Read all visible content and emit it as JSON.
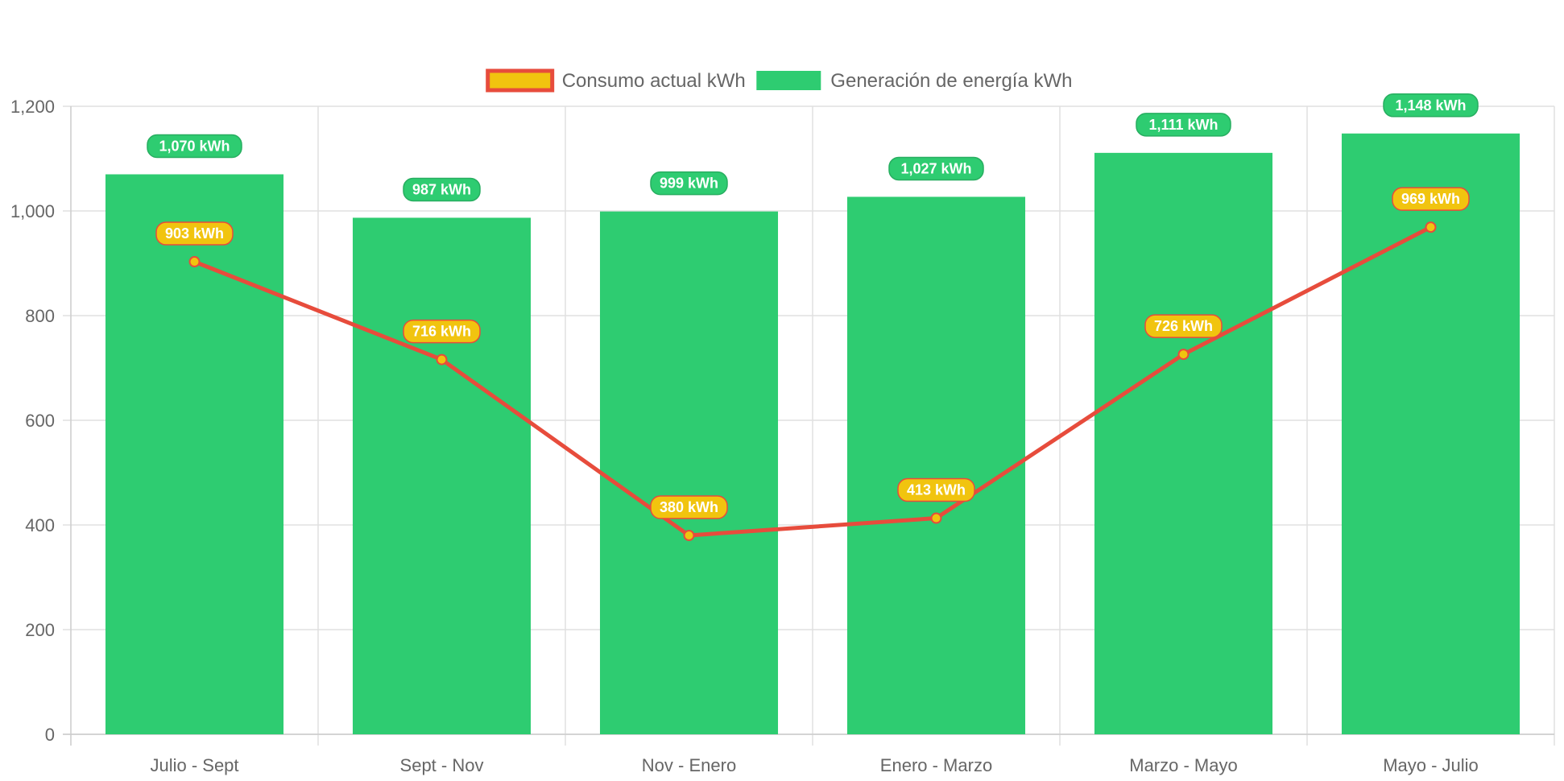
{
  "chart_data": {
    "type": "bar",
    "categories": [
      "Julio - Sept",
      "Sept - Nov",
      "Nov - Enero",
      "Enero - Marzo",
      "Marzo - Mayo",
      "Mayo - Julio"
    ],
    "series": [
      {
        "name": "Generación de energía kWh",
        "type": "bar",
        "values": [
          1070,
          987,
          999,
          1027,
          1111,
          1148
        ],
        "labels": [
          "1,070 kWh",
          "987 kWh",
          "999 kWh",
          "1,027 kWh",
          "1,111 kWh",
          "1,148 kWh"
        ],
        "color": "#2ecc71",
        "label_color": "#27ae60"
      },
      {
        "name": "Consumo actual kWh",
        "type": "line",
        "values": [
          903,
          716,
          380,
          413,
          726,
          969
        ],
        "labels": [
          "903 kWh",
          "716 kWh",
          "380 kWh",
          "413 kWh",
          "726 kWh",
          "969 kWh"
        ],
        "color": "#e74c3c",
        "point_color": "#f1c40f"
      }
    ],
    "legend_order": [
      "Consumo actual kWh",
      "Generación de energía kWh"
    ],
    "legend_position": "top-center",
    "ylim": [
      0,
      1200
    ],
    "yticks": [
      0,
      200,
      400,
      600,
      800,
      1000,
      1200
    ],
    "ytick_labels": [
      "0",
      "200",
      "400",
      "600",
      "800",
      "1,000",
      "1,200"
    ],
    "grid": true
  }
}
